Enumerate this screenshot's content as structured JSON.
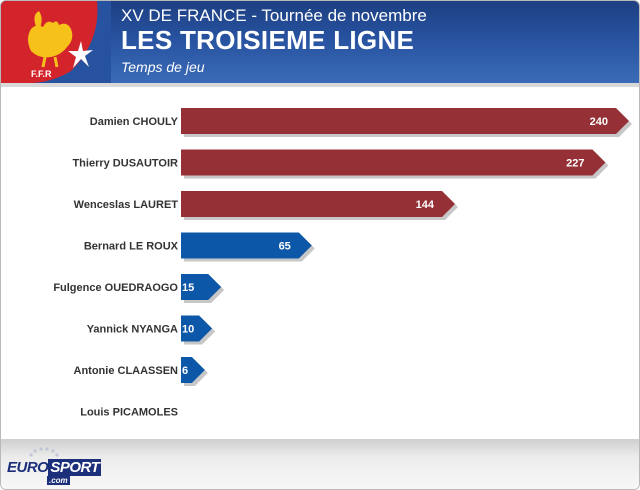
{
  "header": {
    "line1": "XV DE FRANCE - Tournée de novembre",
    "line2": "LES TROISIEME LIGNE",
    "subtitle": "Temps de jeu",
    "logo_text": "F.F.R",
    "logo_icon": "rooster-icon"
  },
  "footer": {
    "brand_part1": "EURO",
    "brand_part2": "SPORT",
    "brand_suffix": ".com"
  },
  "colors": {
    "header_blue": "#27529f",
    "bar_red": "#953037",
    "bar_blue": "#0d57a8",
    "logo_red": "#d3232b",
    "logo_yellow": "#f6c21a"
  },
  "chart_data": {
    "type": "bar",
    "orientation": "horizontal",
    "title": "",
    "xlabel": "",
    "ylabel": "",
    "xlim": [
      0,
      240
    ],
    "grid": false,
    "legend": "none",
    "categories": [
      "Damien CHOULY",
      "Thierry DUSAUTOIR",
      "Wenceslas LAURET",
      "Bernard LE ROUX",
      "Fulgence OUEDRAOGO",
      "Yannick NYANGA",
      "Antonie CLAASSEN",
      "Louis PICAMOLES"
    ],
    "values": [
      240,
      227,
      144,
      65,
      15,
      10,
      6,
      0
    ],
    "value_labels": [
      "240",
      "227",
      "144",
      "65",
      "15",
      "10",
      "6",
      ""
    ],
    "colors": [
      "#953037",
      "#953037",
      "#953037",
      "#0d57a8",
      "#0d57a8",
      "#0d57a8",
      "#0d57a8",
      "#0d57a8"
    ]
  }
}
